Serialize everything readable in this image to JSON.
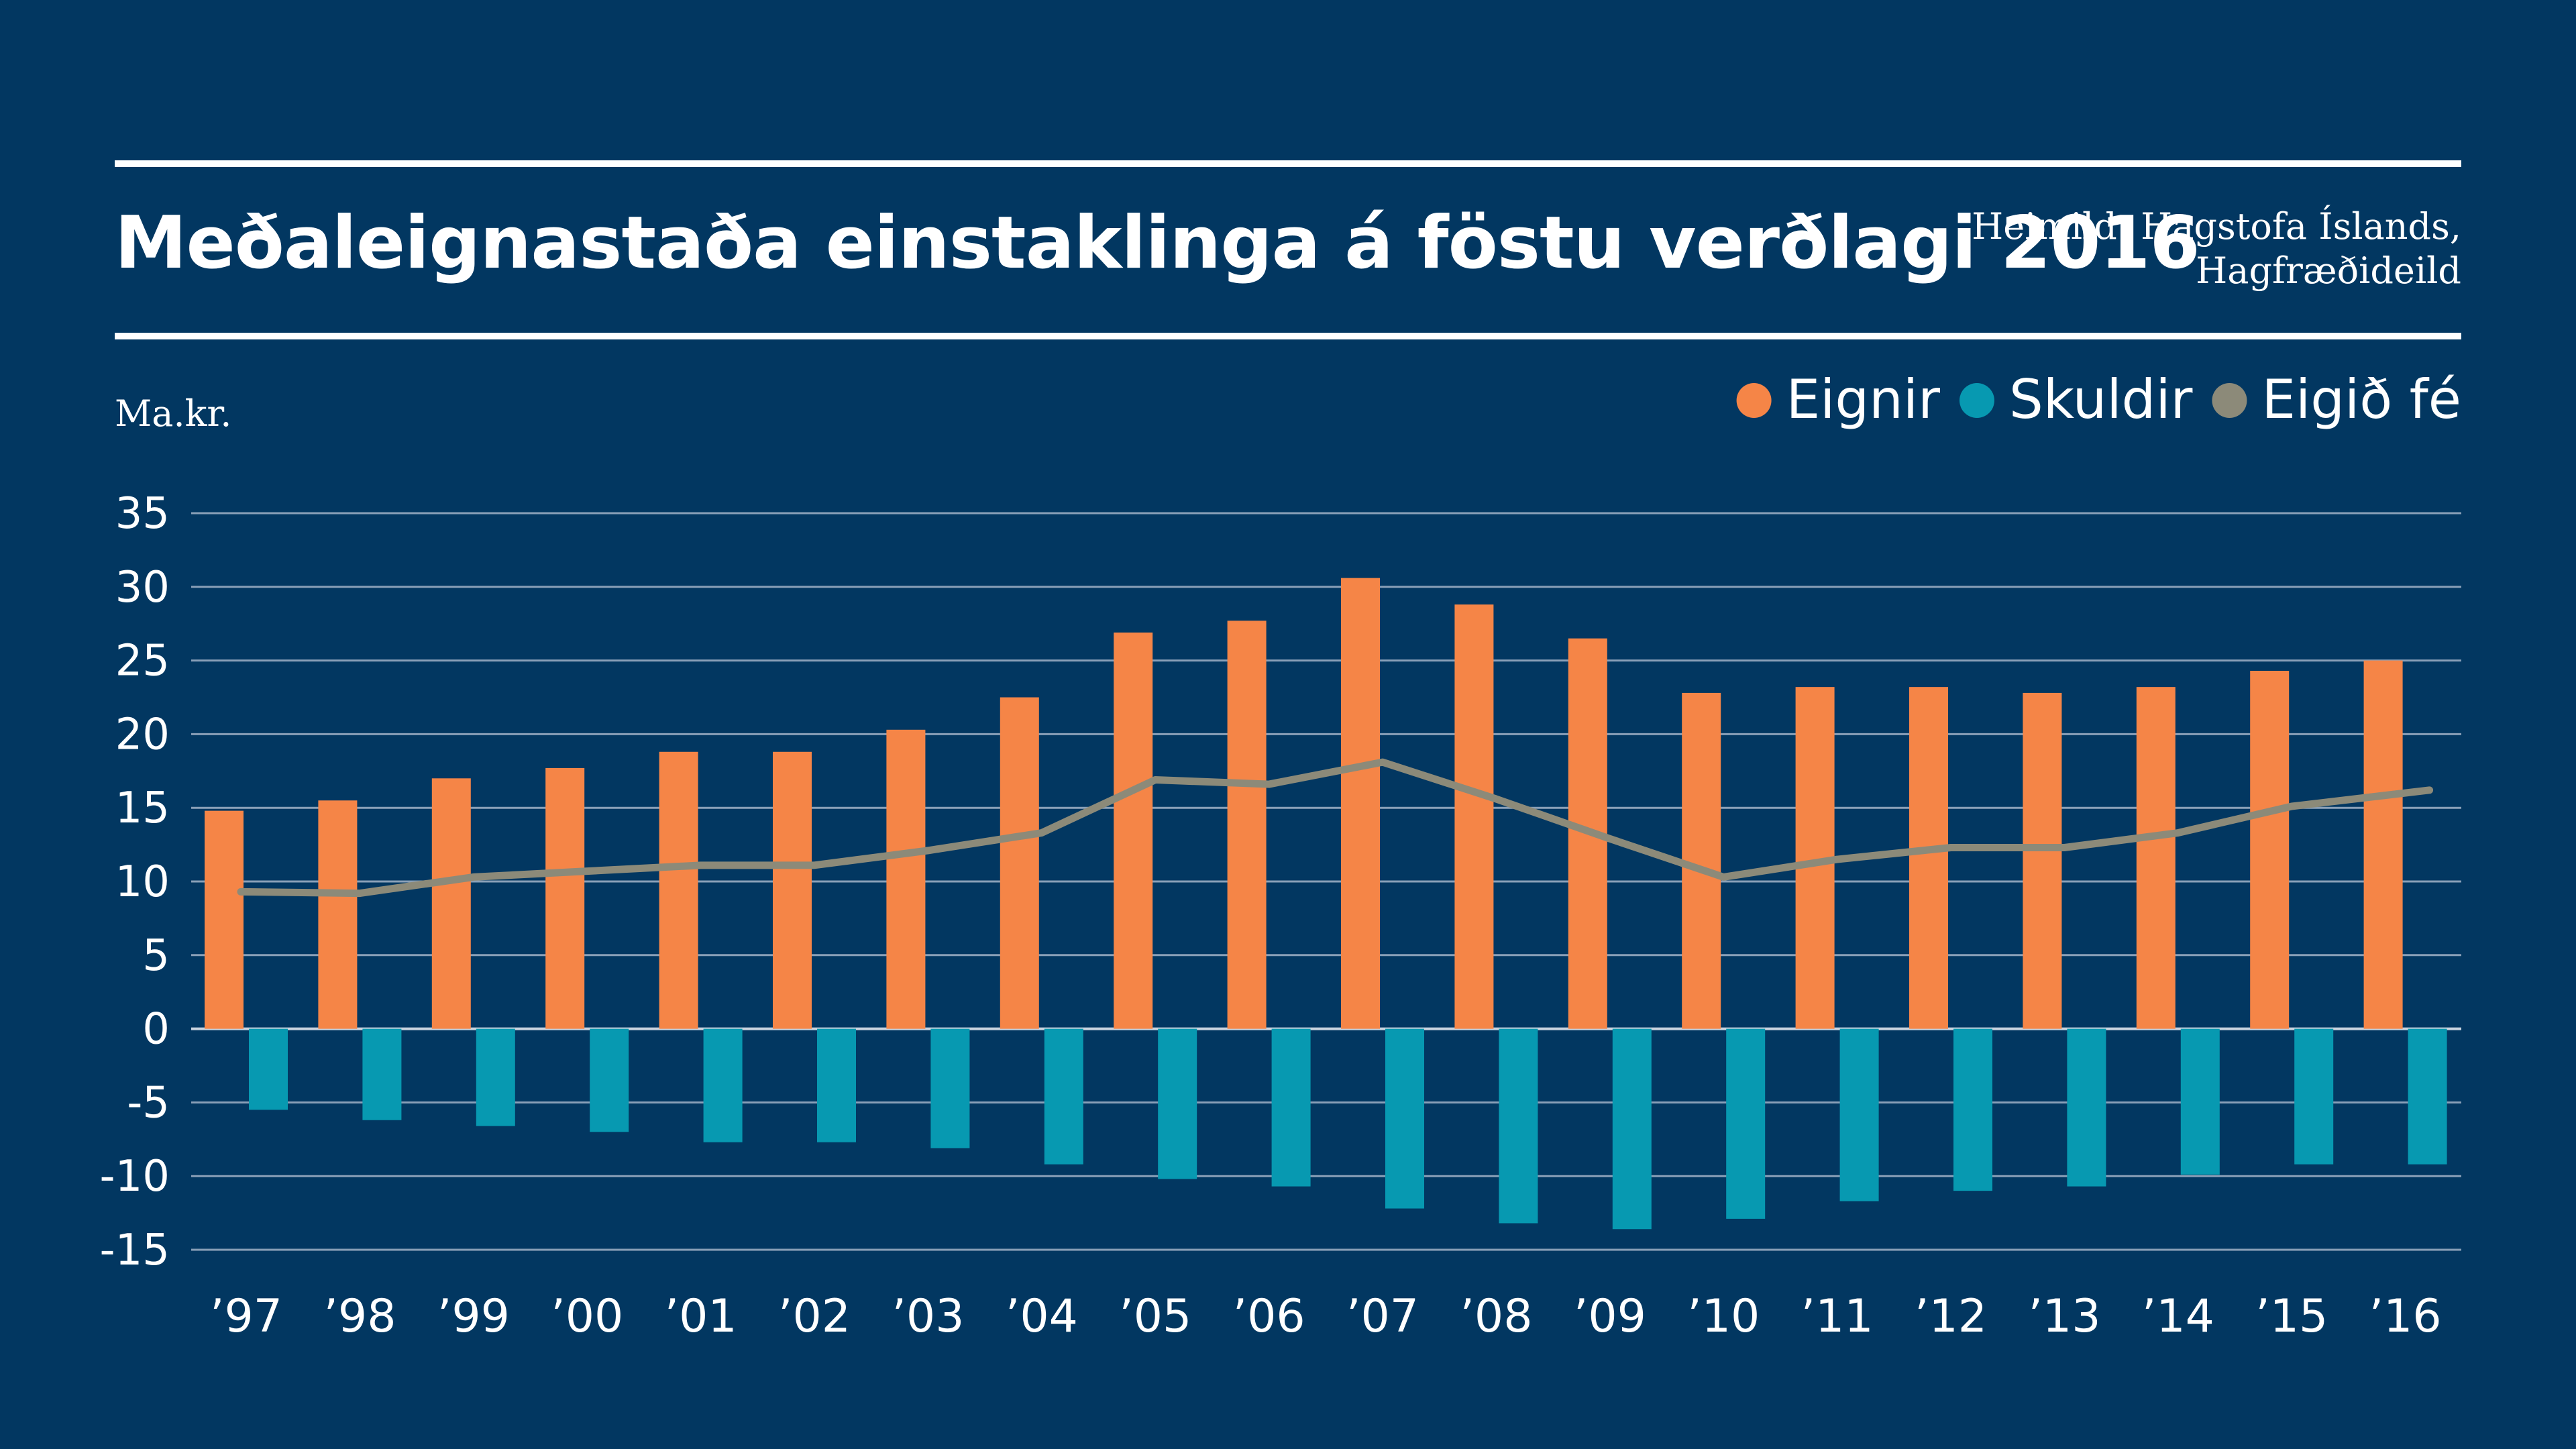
{
  "header": {
    "title": "Meðaleignastaða einstaklinga á föstu verðlagi 2016",
    "source_line1": "Heimild: Hagstofa Íslands,",
    "source_line2": "Hagfræðideild"
  },
  "colors": {
    "background": "#023761",
    "eignir": "#F58547",
    "skuldir": "#0799B1",
    "eigid_fe": "#8C8A79",
    "grid": "#8AA0B8",
    "text": "#FFFFFF"
  },
  "chart_data": {
    "type": "bar",
    "ylabel": "Ma.kr.",
    "ylim": [
      -15,
      35
    ],
    "yticks": [
      35,
      30,
      25,
      20,
      15,
      10,
      5,
      0,
      -5,
      -10,
      -15
    ],
    "grid": true,
    "legend_position": "top-right",
    "categories": [
      "’97",
      "’98",
      "’99",
      "’00",
      "’01",
      "’02",
      "’03",
      "’04",
      "’05",
      "’06",
      "’07",
      "’08",
      "’09",
      "’10",
      "’11",
      "’12",
      "’13",
      "’14",
      "’15",
      "’16"
    ],
    "series": [
      {
        "name": "Eignir",
        "type": "bar",
        "values": [
          14.8,
          15.5,
          17.0,
          17.7,
          18.8,
          18.8,
          20.3,
          22.5,
          26.9,
          27.7,
          30.6,
          28.8,
          26.5,
          22.8,
          23.2,
          23.2,
          22.8,
          23.2,
          24.3,
          25.0
        ]
      },
      {
        "name": "Skuldir",
        "type": "bar",
        "values": [
          -5.5,
          -6.2,
          -6.6,
          -7.0,
          -7.7,
          -7.7,
          -8.1,
          -9.2,
          -10.2,
          -10.7,
          -12.2,
          -13.2,
          -13.6,
          -12.9,
          -11.7,
          -11.0,
          -10.7,
          -9.9,
          -9.2,
          -9.2
        ]
      },
      {
        "name": "Eigið fé",
        "type": "line",
        "values": [
          9.3,
          9.2,
          10.3,
          10.7,
          11.1,
          11.1,
          12.1,
          13.3,
          16.9,
          16.6,
          18.1,
          15.6,
          12.9,
          10.3,
          11.5,
          12.3,
          12.3,
          13.3,
          15.1,
          16.2
        ]
      }
    ]
  }
}
